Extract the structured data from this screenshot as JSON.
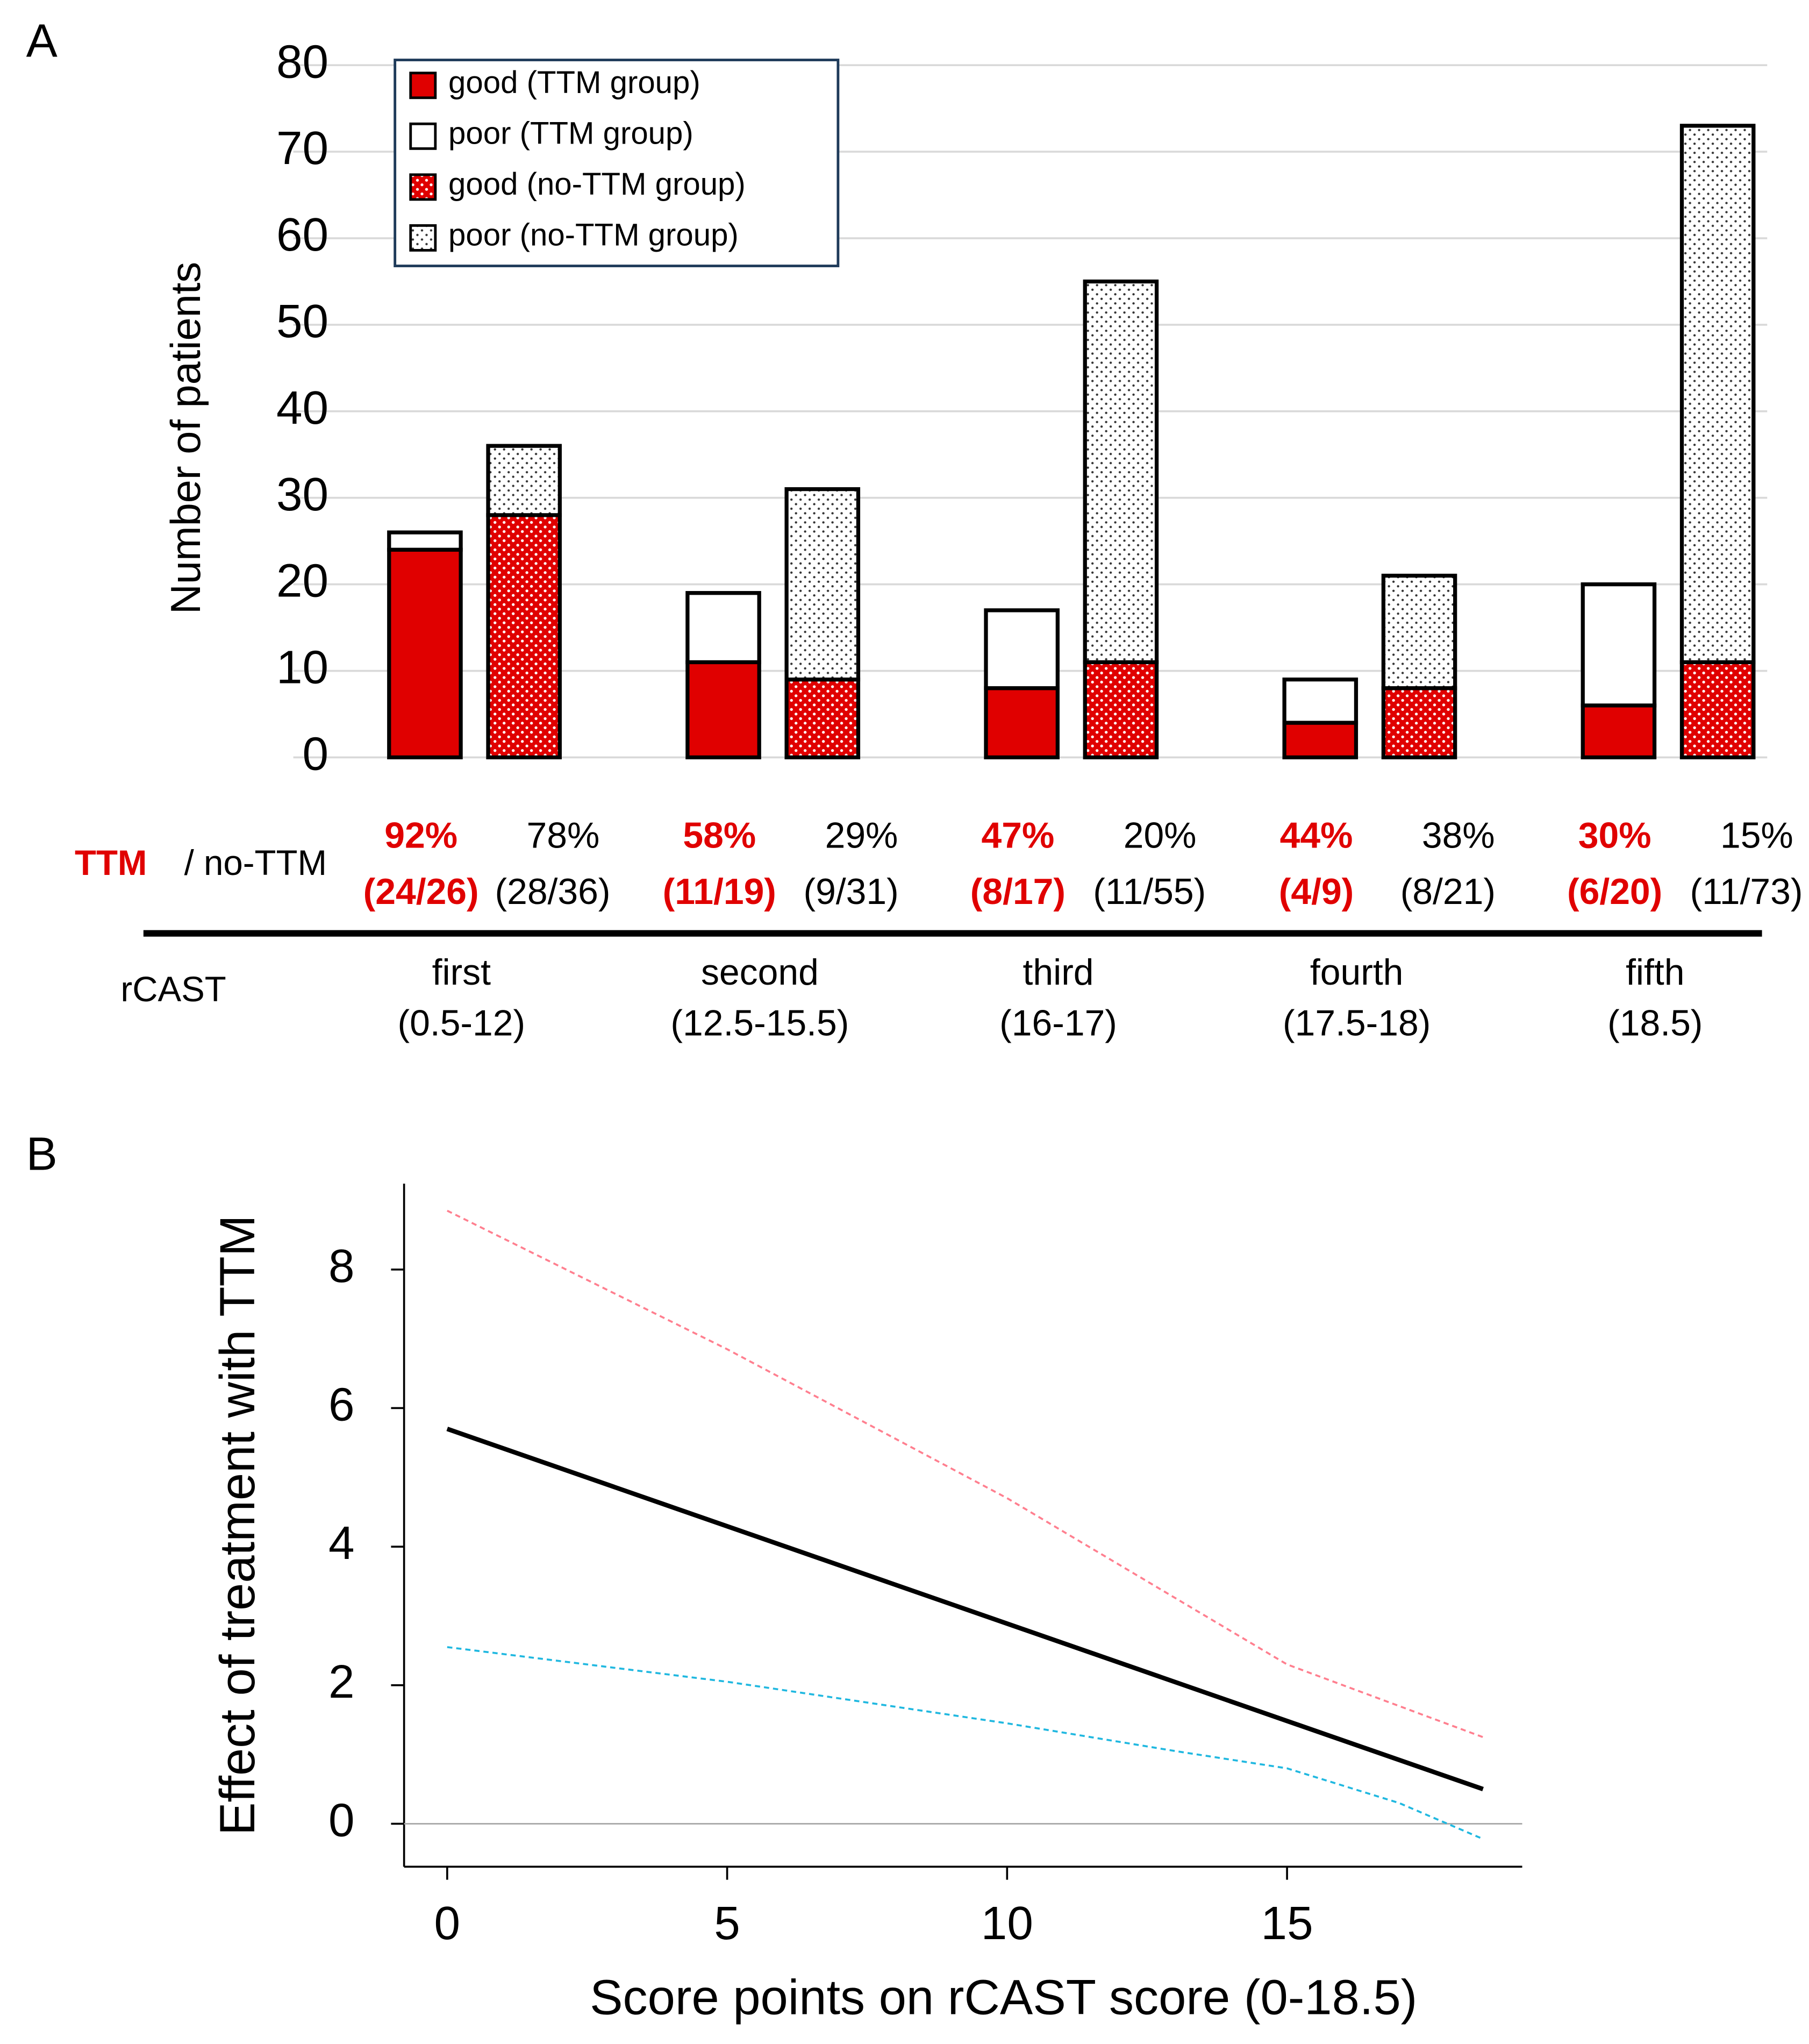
{
  "chart_data": [
    {
      "type": "bar",
      "panel": "A",
      "y_label": "Number of patients",
      "categories": [
        "first",
        "second",
        "third",
        "fourth",
        "fifth"
      ],
      "category_ranges": [
        "(0.5-12)",
        "(12.5-15.5)",
        "(16-17)",
        "(17.5-18)",
        "(18.5)"
      ],
      "category_axis_label": "rCAST",
      "rate_row_label": {
        "ttm": "TTM",
        "no_ttm": "/ no-TTM"
      },
      "rates": [
        {
          "ttm_pct": "92%",
          "ttm_frac": "(24/26)",
          "no_pct": "78%",
          "no_frac": "(28/36)"
        },
        {
          "ttm_pct": "58%",
          "ttm_frac": "(11/19)",
          "no_pct": "29%",
          "no_frac": "(9/31)"
        },
        {
          "ttm_pct": "47%",
          "ttm_frac": "(8/17)",
          "no_pct": "20%",
          "no_frac": "(11/55)"
        },
        {
          "ttm_pct": "44%",
          "ttm_frac": "(4/9)",
          "no_pct": "38%",
          "no_frac": "(8/21)"
        },
        {
          "ttm_pct": "30%",
          "ttm_frac": "(6/20)",
          "no_pct": "15%",
          "no_frac": "(11/73)"
        }
      ],
      "series": [
        {
          "name": "good (TTM group)",
          "color": "#e00000",
          "pattern": "solid",
          "stack": "TTM",
          "values": [
            24,
            11,
            8,
            4,
            6
          ]
        },
        {
          "name": "poor (TTM group)",
          "color": "#ffffff",
          "pattern": "solid",
          "stack": "TTM",
          "values": [
            2,
            8,
            9,
            5,
            14
          ]
        },
        {
          "name": "good (no-TTM group)",
          "color": "#e00000",
          "pattern": "dots",
          "stack": "no-TTM",
          "values": [
            28,
            9,
            11,
            8,
            11
          ]
        },
        {
          "name": "poor (no-TTM group)",
          "color": "#ffffff",
          "pattern": "dots",
          "stack": "no-TTM",
          "values": [
            8,
            22,
            44,
            13,
            62
          ]
        }
      ],
      "ylim": [
        0,
        80
      ],
      "yticks": [
        0,
        10,
        20,
        30,
        40,
        50,
        60,
        70,
        80
      ],
      "grid": true,
      "legend": "upper left"
    },
    {
      "type": "line",
      "panel": "B",
      "x_label": "Score points on rCAST score (0-18.5)",
      "y_label": "Effect of treatment with TTM",
      "series": [
        {
          "color": "#000000",
          "dash": false,
          "x": [
            0,
            18.5
          ],
          "values": [
            5.7,
            0.5
          ]
        },
        {
          "color": "#ff7f8f",
          "dash": true,
          "x": [
            0,
            5,
            10,
            15,
            18.5
          ],
          "values": [
            8.85,
            6.85,
            4.7,
            2.3,
            1.25
          ]
        },
        {
          "color": "#20b8e0",
          "dash": true,
          "x": [
            0,
            5,
            10,
            13,
            15,
            17,
            18.5
          ],
          "values": [
            2.55,
            2.05,
            1.45,
            1.05,
            0.8,
            0.3,
            -0.22
          ]
        }
      ],
      "xlim": [
        -0.77,
        19.2
      ],
      "xticks": [
        0,
        5,
        10,
        15
      ],
      "ylim": [
        -0.62,
        9.24
      ],
      "yticks": [
        0,
        2,
        4,
        6,
        8
      ],
      "reference_line": 0
    }
  ]
}
